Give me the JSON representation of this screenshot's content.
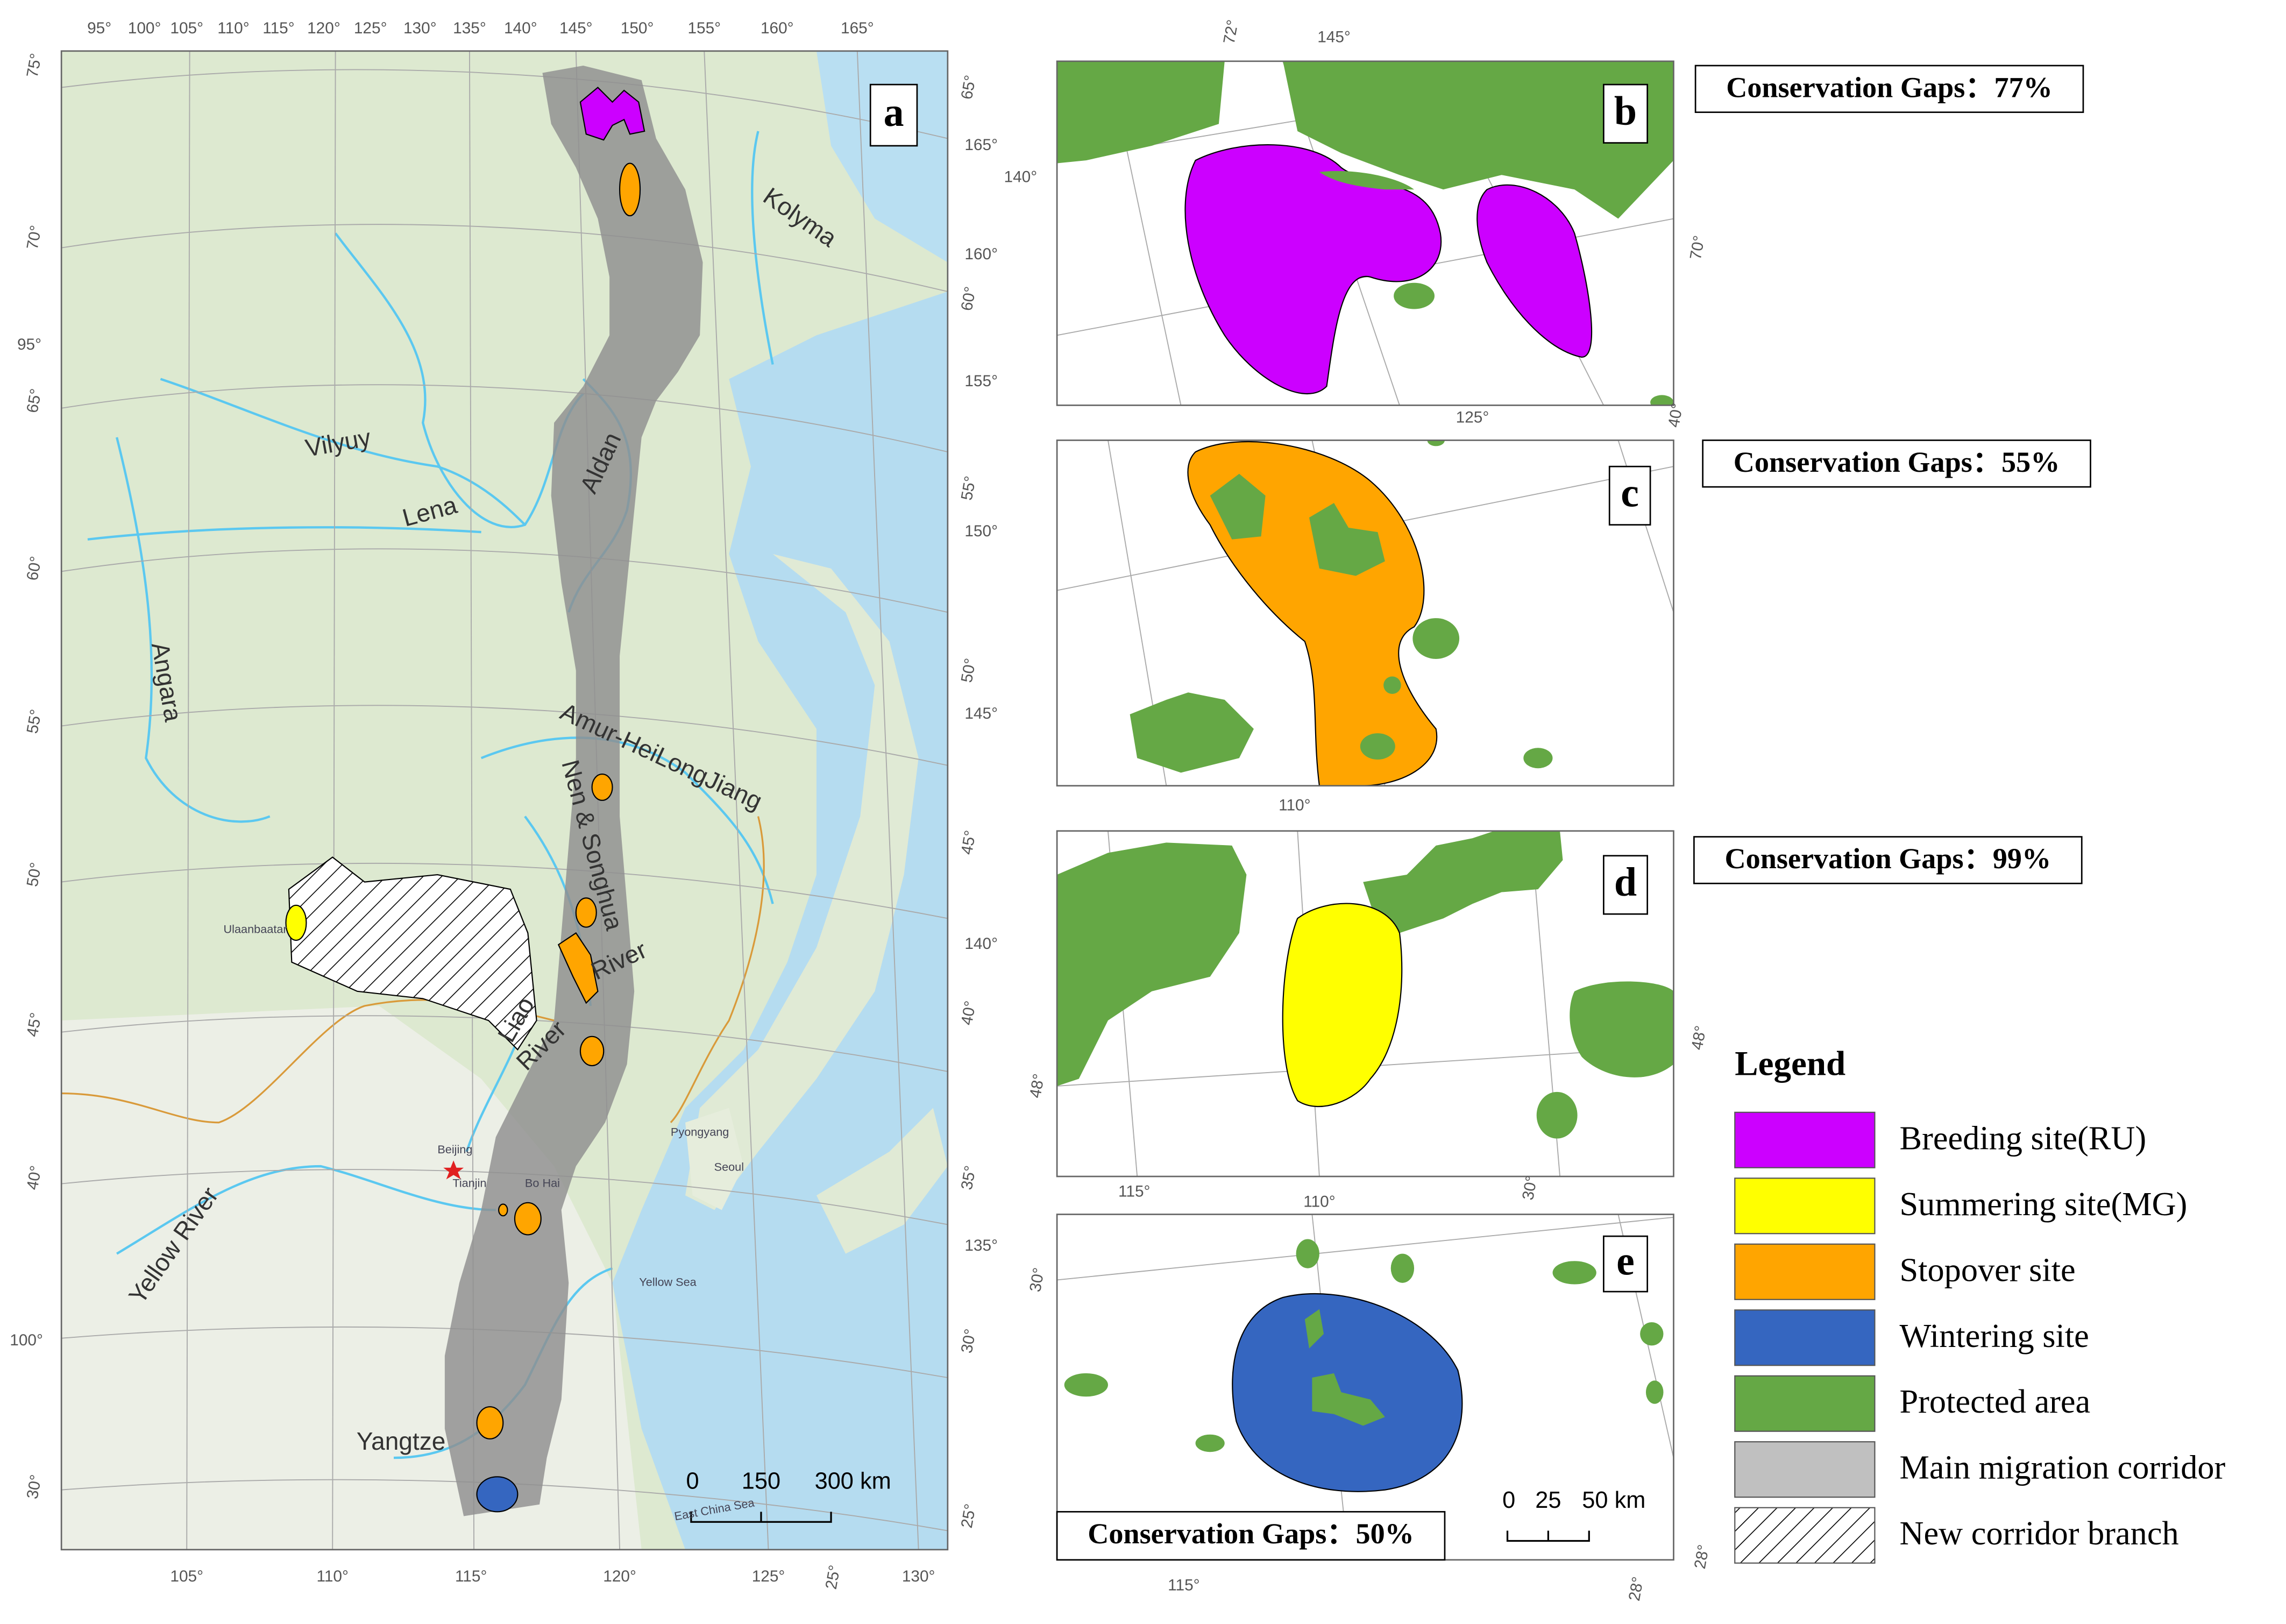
{
  "panel_a": {
    "label": "a",
    "graticule_labels": [
      "95°",
      "100°",
      "105°",
      "110°",
      "115°",
      "120°",
      "125°",
      "130°",
      "135°",
      "140°",
      "145°",
      "150°",
      "155°",
      "160°",
      "165°",
      "75°",
      "70°",
      "95°",
      "65°",
      "60°",
      "55°",
      "50°",
      "45°",
      "40°",
      "100°",
      "30°",
      "65°",
      "165°",
      "160°",
      "60°",
      "155°",
      "55°",
      "150°",
      "50°",
      "145°",
      "45°",
      "140°",
      "40°",
      "35°",
      "135°",
      "30°",
      "25°",
      "105°",
      "110°",
      "115°",
      "120°",
      "125°",
      "130°",
      "25°"
    ],
    "place_labels": [
      "Kolyma",
      "Vilyuy",
      "Lena",
      "Aldan",
      "Angara",
      "Amur-HeiLongJiang",
      "Nen & Songhua",
      "River",
      "Liao",
      "River",
      "Yellow River",
      "Yangtze",
      "Beijing",
      "Tianjin",
      "Bo Hai",
      "Pyongyang",
      "Seoul",
      "Yellow Sea",
      "East China Sea",
      "Ulaanbaatar"
    ],
    "scale_bar": [
      "0",
      "150",
      "300 km"
    ]
  },
  "panels": [
    {
      "label": "b",
      "conservation_gaps": "Conservation Gaps：77%",
      "graticule_labels": [
        "72°",
        "145°",
        "140°",
        "70°",
        "125°",
        "40°"
      ]
    },
    {
      "label": "c",
      "conservation_gaps": "Conservation Gaps：55%",
      "graticule_labels": [
        "110°"
      ]
    },
    {
      "label": "d",
      "conservation_gaps": "Conservation Gaps：99%",
      "graticule_labels": [
        "48°",
        "48°",
        "115°",
        "110°",
        "30°"
      ]
    },
    {
      "label": "e",
      "conservation_gaps": "Conservation Gaps：50%",
      "graticule_labels": [
        "30°",
        "115°",
        "28°",
        "28°"
      ],
      "scale_bar": [
        "0",
        "25",
        "50 km"
      ]
    }
  ],
  "legend": {
    "title": "Legend",
    "items": [
      "Breeding site(RU)",
      "Summering site(MG)",
      "Stopover site",
      "Wintering site",
      "Protected area",
      "Main migration corridor",
      "New corridor branch"
    ]
  }
}
